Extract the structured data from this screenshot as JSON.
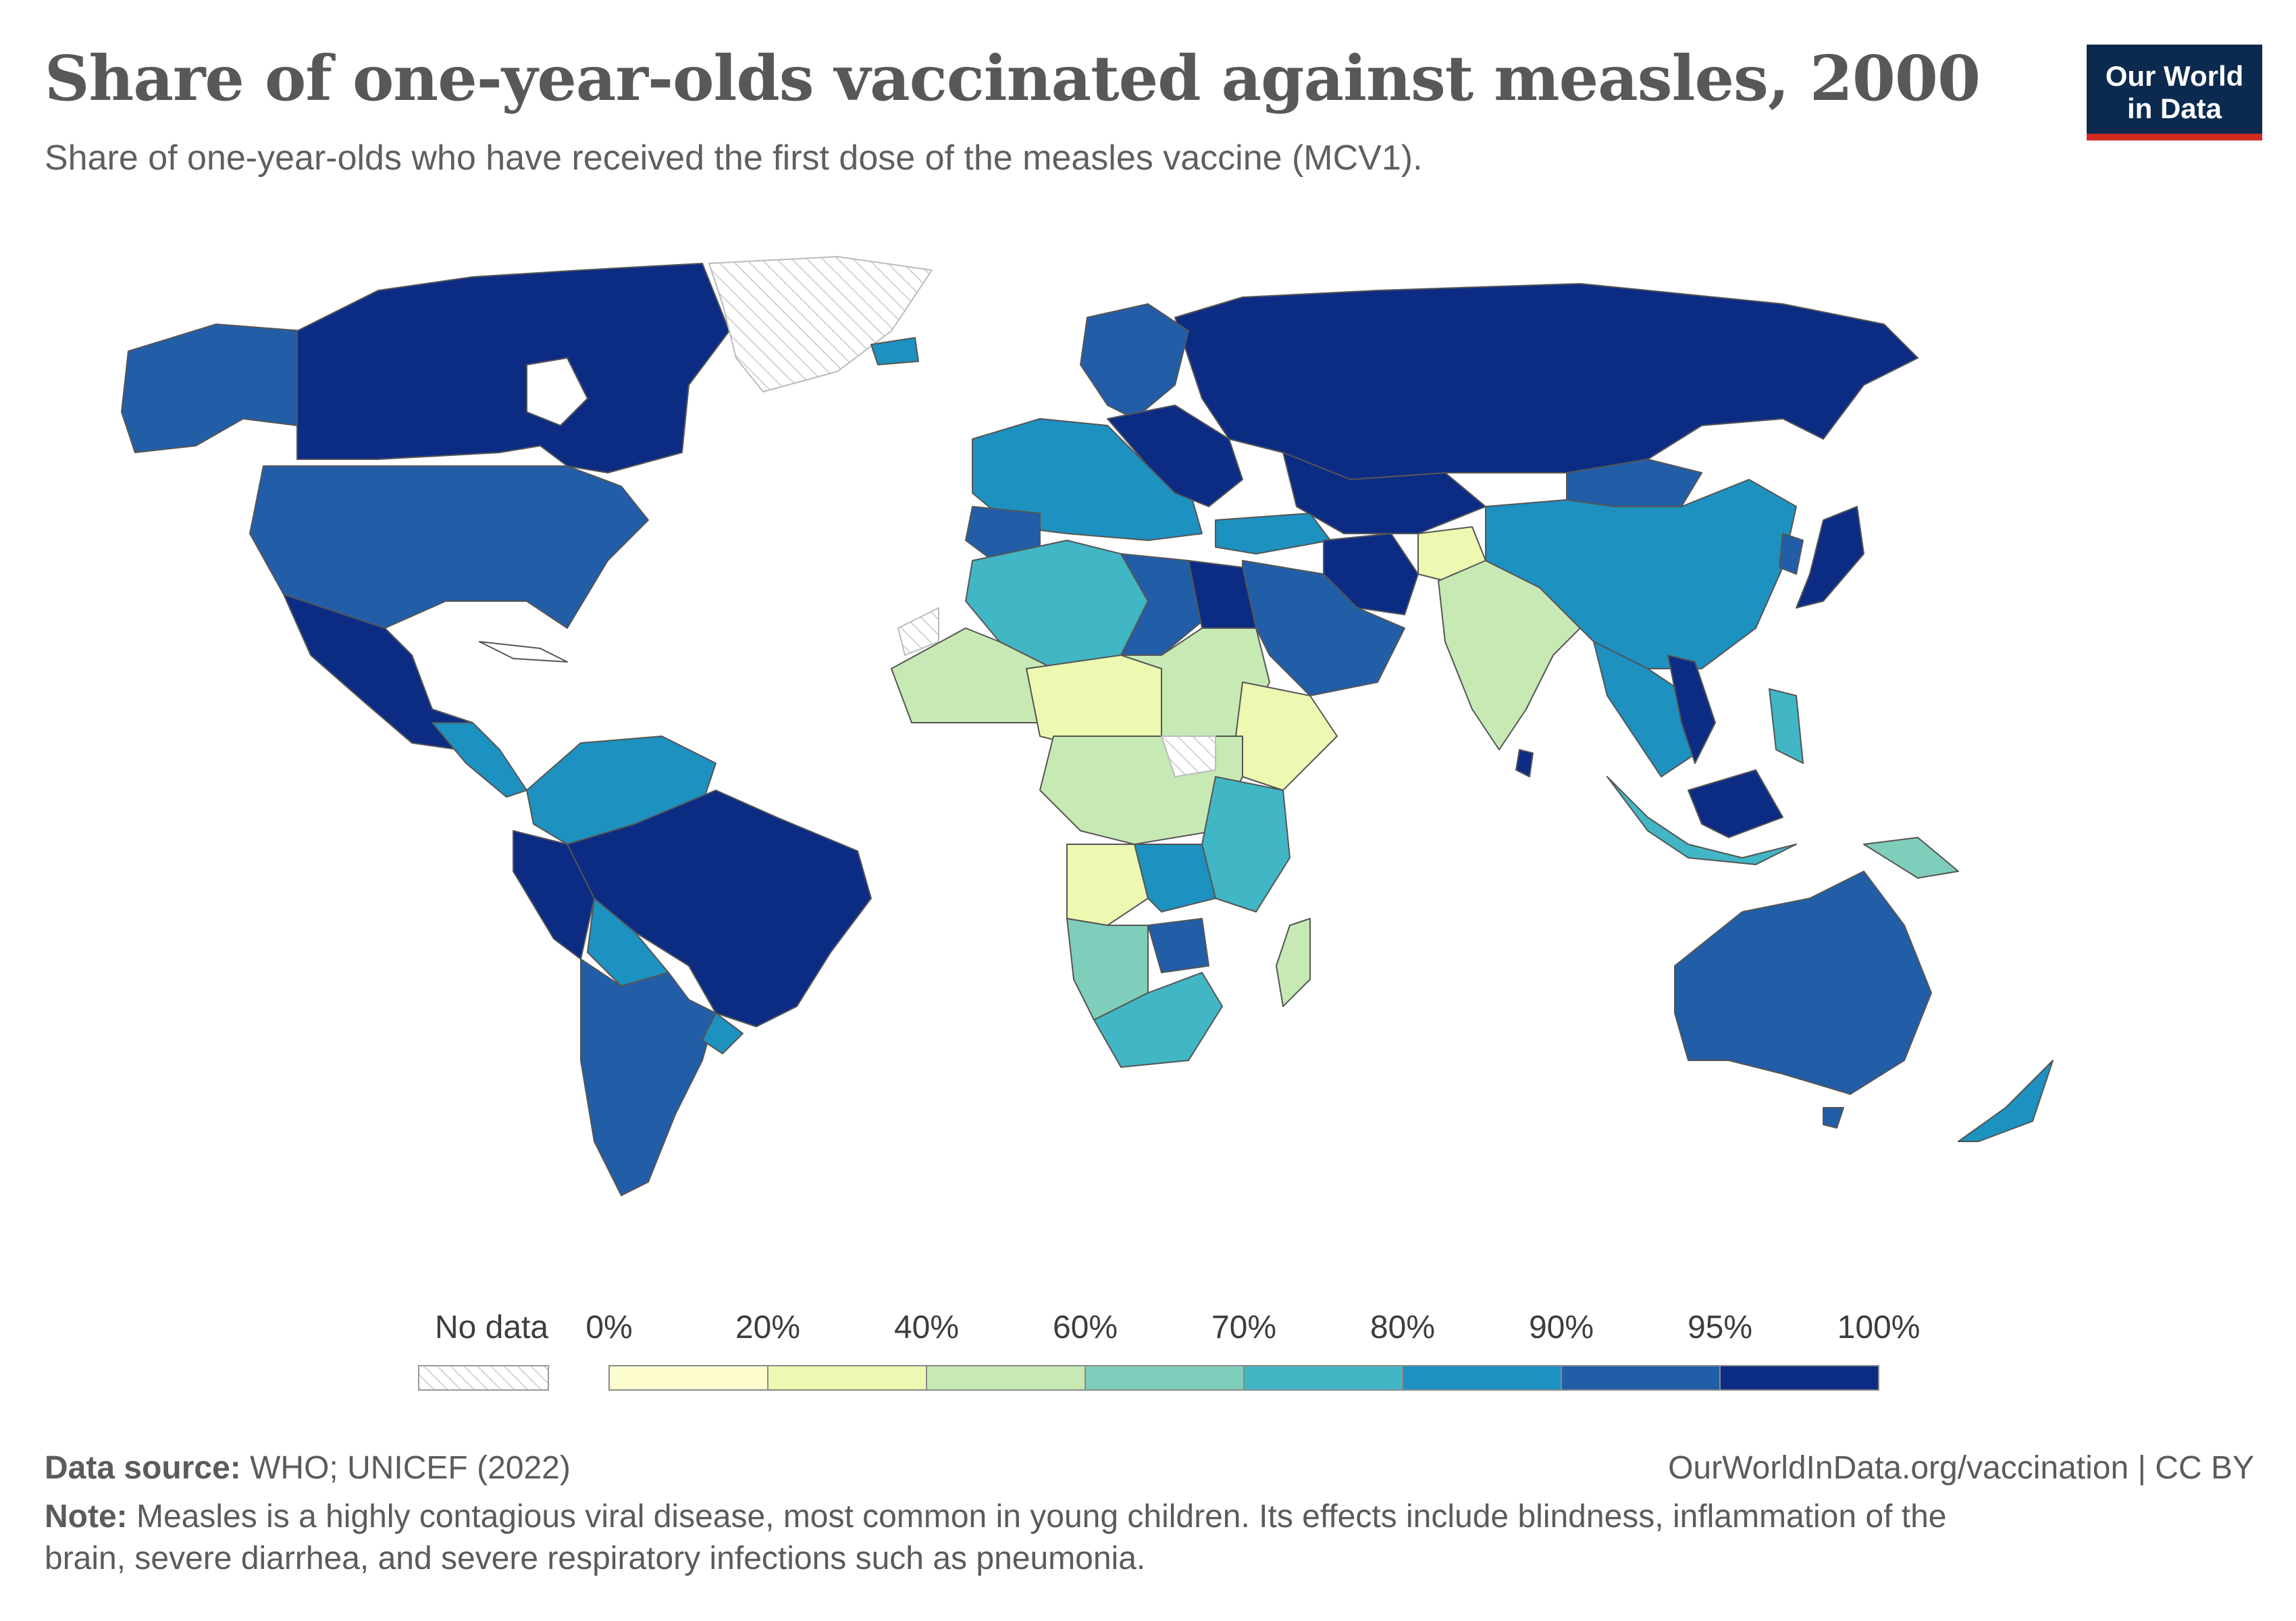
{
  "header": {
    "title": "Share of one-year-olds vaccinated against measles, 2000",
    "subtitle": "Share of one-year-olds who have received the first dose of the measles vaccine (MCV1)."
  },
  "logo": {
    "line1": "Our World",
    "line2": "in Data"
  },
  "legend": {
    "no_data_label": "No data",
    "ticks": [
      "0%",
      "20%",
      "40%",
      "60%",
      "70%",
      "80%",
      "90%",
      "95%",
      "100%"
    ],
    "bins": [
      {
        "from": 0,
        "to": 20,
        "color": "#fdfdd0"
      },
      {
        "from": 20,
        "to": 40,
        "color": "#edf8b1"
      },
      {
        "from": 40,
        "to": 60,
        "color": "#c7e9b4"
      },
      {
        "from": 60,
        "to": 70,
        "color": "#7fcdbb"
      },
      {
        "from": 70,
        "to": 80,
        "color": "#41b6c4"
      },
      {
        "from": 80,
        "to": 90,
        "color": "#1d91c0"
      },
      {
        "from": 90,
        "to": 95,
        "color": "#225ea8"
      },
      {
        "from": 95,
        "to": 100,
        "color": "#0c2c84"
      }
    ]
  },
  "footer": {
    "source_label": "Data source:",
    "source_text": "WHO; UNICEF (2022)",
    "url": "OurWorldInData.org/vaccination | CC BY",
    "note_label": "Note:",
    "note_line1": "Measles is a highly contagious viral disease, most common in young children. Its effects include blindness, inflammation of the",
    "note_line2": "brain, severe diarrhea, and severe respiratory infections such as pneumonia."
  },
  "colors": {
    "no_data": "#ffffff",
    "border": "#555555"
  },
  "map_regions": [
    {
      "name": "Canada / Alaska",
      "value_bin": "95-100%",
      "color": "#0c2c84"
    },
    {
      "name": "Alaska",
      "value_bin": "90-95%",
      "color": "#225ea8"
    },
    {
      "name": "Greenland",
      "value_bin": "No data",
      "color": "no_data"
    },
    {
      "name": "United States",
      "value_bin": "90-95%",
      "color": "#225ea8"
    },
    {
      "name": "Mexico",
      "value_bin": "95-100%",
      "color": "#0c2c84"
    },
    {
      "name": "Central America",
      "value_bin": "80-90%",
      "color": "#1d91c0"
    },
    {
      "name": "Colombia / Venezuela",
      "value_bin": "80-90%",
      "color": "#1d91c0"
    },
    {
      "name": "Brazil",
      "value_bin": "95-100%",
      "color": "#0c2c84"
    },
    {
      "name": "Peru / Ecuador",
      "value_bin": "95-100%",
      "color": "#0c2c84"
    },
    {
      "name": "Bolivia",
      "value_bin": "80-90%",
      "color": "#1d91c0"
    },
    {
      "name": "Argentina / Chile",
      "value_bin": "90-95%",
      "color": "#225ea8"
    },
    {
      "name": "Uruguay",
      "value_bin": "80-90%",
      "color": "#1d91c0"
    },
    {
      "name": "Russia / Northern Eurasia",
      "value_bin": "95-100%",
      "color": "#0c2c84"
    },
    {
      "name": "Western Europe",
      "value_bin": "80-90%",
      "color": "#1d91c0"
    },
    {
      "name": "Scandinavia",
      "value_bin": "90-95%",
      "color": "#225ea8"
    },
    {
      "name": "Iceland",
      "value_bin": "80-90%",
      "color": "#1d91c0"
    },
    {
      "name": "North Africa (Algeria)",
      "value_bin": "70-80%",
      "color": "#41b6c4"
    },
    {
      "name": "Libya",
      "value_bin": "90-95%",
      "color": "#225ea8"
    },
    {
      "name": "Egypt",
      "value_bin": "95-100%",
      "color": "#0c2c84"
    },
    {
      "name": "Sahel / West Africa",
      "value_bin": "40-60%",
      "color": "#c7e9b4"
    },
    {
      "name": "Nigeria / Chad",
      "value_bin": "20-40%",
      "color": "#edf8b1"
    },
    {
      "name": "Central Africa",
      "value_bin": "40-60%",
      "color": "#c7e9b4"
    },
    {
      "name": "Angola",
      "value_bin": "20-40%",
      "color": "#edf8b1"
    },
    {
      "name": "East Africa",
      "value_bin": "70-80%",
      "color": "#41b6c4"
    },
    {
      "name": "Ethiopia / Somalia",
      "value_bin": "20-40%",
      "color": "#edf8b1"
    },
    {
      "name": "Namibia / Botswana",
      "value_bin": "60-70%",
      "color": "#7fcdbb"
    },
    {
      "name": "South Africa",
      "value_bin": "70-80%",
      "color": "#41b6c4"
    },
    {
      "name": "Zimbabwe",
      "value_bin": "90-95%",
      "color": "#225ea8"
    },
    {
      "name": "Madagascar",
      "value_bin": "40-60%",
      "color": "#c7e9b4"
    },
    {
      "name": "Arabia",
      "value_bin": "90-95%",
      "color": "#225ea8"
    },
    {
      "name": "Iran",
      "value_bin": "95-100%",
      "color": "#0c2c84"
    },
    {
      "name": "India",
      "value_bin": "40-60%",
      "color": "#c7e9b4"
    },
    {
      "name": "Afghanistan",
      "value_bin": "20-40%",
      "color": "#edf8b1"
    },
    {
      "name": "China",
      "value_bin": "80-90%",
      "color": "#1d91c0"
    },
    {
      "name": "Mongolia",
      "value_bin": "90-95%",
      "color": "#225ea8"
    },
    {
      "name": "Japan",
      "value_bin": "95-100%",
      "color": "#0c2c84"
    },
    {
      "name": "Southeast Asia",
      "value_bin": "80-90%",
      "color": "#1d91c0"
    },
    {
      "name": "Indonesia",
      "value_bin": "70-80%",
      "color": "#41b6c4"
    },
    {
      "name": "Borneo (Malaysia)",
      "value_bin": "95-100%",
      "color": "#0c2c84"
    },
    {
      "name": "Papua New Guinea",
      "value_bin": "60-70%",
      "color": "#7fcdbb"
    },
    {
      "name": "Australia",
      "value_bin": "90-95%",
      "color": "#225ea8"
    },
    {
      "name": "New Zealand",
      "value_bin": "80-90%",
      "color": "#1d91c0"
    }
  ]
}
